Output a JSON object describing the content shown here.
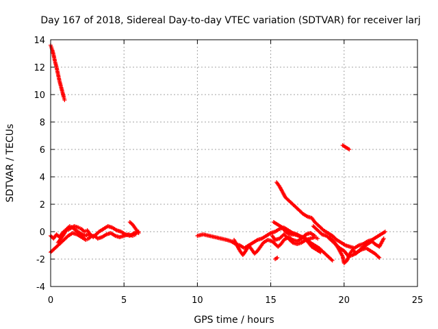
{
  "chart_data": {
    "type": "scatter",
    "title": "Day 167 of 2018, Sidereal Day-to-day VTEC variation (SDTVAR) for receiver larj",
    "xlabel": "GPS time / hours",
    "ylabel": "SDTVAR / TECUs",
    "xlim": [
      0,
      25
    ],
    "ylim": [
      -4,
      14
    ],
    "xticks": [
      0,
      5,
      10,
      15,
      20,
      25
    ],
    "yticks": [
      -4,
      -2,
      0,
      2,
      4,
      6,
      8,
      10,
      12,
      14
    ],
    "grid": true,
    "marker": "+",
    "color": "#ff0000",
    "series": [
      {
        "name": "SDTVAR",
        "segments": [
          [
            [
              0.0,
              13.6
            ],
            [
              0.1,
              13.3
            ],
            [
              0.2,
              12.9
            ],
            [
              0.3,
              12.4
            ],
            [
              0.4,
              12.0
            ],
            [
              0.5,
              11.5
            ],
            [
              0.6,
              11.0
            ],
            [
              0.7,
              10.6
            ],
            [
              0.8,
              10.2
            ],
            [
              0.9,
              9.8
            ],
            [
              0.95,
              9.6
            ]
          ],
          [
            [
              0.0,
              -0.3
            ],
            [
              0.2,
              -0.5
            ],
            [
              0.4,
              -0.2
            ],
            [
              0.6,
              -0.4
            ],
            [
              0.8,
              -0.1
            ],
            [
              1.0,
              0.1
            ],
            [
              1.3,
              0.2
            ],
            [
              1.6,
              0.4
            ],
            [
              1.9,
              0.3
            ],
            [
              2.1,
              0.2
            ],
            [
              2.3,
              0.0
            ],
            [
              2.5,
              0.1
            ],
            [
              2.7,
              -0.2
            ],
            [
              2.9,
              -0.4
            ],
            [
              3.1,
              -0.2
            ],
            [
              3.3,
              0.0
            ],
            [
              3.6,
              0.2
            ],
            [
              3.9,
              0.4
            ],
            [
              4.2,
              0.3
            ],
            [
              4.5,
              0.1
            ],
            [
              4.8,
              0.0
            ],
            [
              5.1,
              -0.2
            ],
            [
              5.4,
              -0.3
            ],
            [
              5.7,
              -0.1
            ],
            [
              6.0,
              0.0
            ]
          ],
          [
            [
              0.0,
              -1.5
            ],
            [
              0.3,
              -1.2
            ],
            [
              0.6,
              -0.9
            ],
            [
              0.9,
              -0.6
            ],
            [
              1.2,
              -0.3
            ],
            [
              1.5,
              -0.1
            ],
            [
              1.8,
              -0.2
            ],
            [
              2.1,
              -0.4
            ],
            [
              2.4,
              -0.6
            ],
            [
              2.6,
              -0.5
            ],
            [
              2.8,
              -0.3
            ],
            [
              3.0,
              -0.3
            ],
            [
              3.2,
              -0.5
            ],
            [
              3.5,
              -0.4
            ],
            [
              3.8,
              -0.2
            ],
            [
              4.1,
              -0.1
            ],
            [
              4.4,
              -0.3
            ],
            [
              4.7,
              -0.4
            ],
            [
              5.0,
              -0.3
            ],
            [
              5.3,
              -0.2
            ],
            [
              5.6,
              -0.3
            ],
            [
              5.8,
              -0.2
            ]
          ],
          [
            [
              0.5,
              -0.8
            ],
            [
              0.7,
              -0.5
            ],
            [
              0.9,
              -0.2
            ],
            [
              1.1,
              0.2
            ],
            [
              1.3,
              0.4
            ],
            [
              1.5,
              0.3
            ],
            [
              1.7,
              0.1
            ],
            [
              2.0,
              -0.1
            ],
            [
              2.3,
              -0.3
            ],
            [
              2.6,
              -0.2
            ]
          ],
          [
            [
              5.4,
              0.7
            ],
            [
              5.6,
              0.5
            ],
            [
              5.8,
              0.2
            ],
            [
              6.0,
              -0.1
            ]
          ],
          [
            [
              10.0,
              -0.3
            ],
            [
              10.4,
              -0.2
            ],
            [
              10.8,
              -0.3
            ],
            [
              11.2,
              -0.4
            ],
            [
              11.6,
              -0.5
            ],
            [
              12.0,
              -0.6
            ],
            [
              12.3,
              -0.7
            ],
            [
              12.6,
              -0.9
            ],
            [
              12.9,
              -1.0
            ],
            [
              13.2,
              -1.2
            ],
            [
              13.5,
              -1.0
            ],
            [
              13.8,
              -0.8
            ],
            [
              14.1,
              -0.6
            ],
            [
              14.4,
              -0.5
            ],
            [
              14.7,
              -0.3
            ],
            [
              15.0,
              -0.1
            ],
            [
              15.3,
              0.0
            ],
            [
              15.6,
              0.2
            ],
            [
              15.9,
              0.3
            ],
            [
              16.2,
              0.1
            ],
            [
              16.5,
              -0.1
            ],
            [
              16.8,
              -0.2
            ],
            [
              17.1,
              -0.4
            ],
            [
              17.4,
              -0.5
            ],
            [
              17.7,
              -0.8
            ],
            [
              18.0,
              -1.0
            ],
            [
              18.3,
              -1.2
            ],
            [
              18.6,
              -1.5
            ],
            [
              18.9,
              -1.8
            ],
            [
              19.2,
              -2.1
            ]
          ],
          [
            [
              12.5,
              -0.6
            ],
            [
              12.7,
              -1.0
            ],
            [
              12.9,
              -1.4
            ],
            [
              13.1,
              -1.7
            ],
            [
              13.3,
              -1.4
            ],
            [
              13.5,
              -1.0
            ],
            [
              13.7,
              -1.3
            ],
            [
              13.9,
              -1.6
            ],
            [
              14.1,
              -1.4
            ],
            [
              14.3,
              -1.1
            ],
            [
              14.5,
              -0.8
            ],
            [
              14.8,
              -0.6
            ],
            [
              15.1,
              -0.7
            ],
            [
              15.3,
              -0.9
            ],
            [
              15.5,
              -1.1
            ],
            [
              15.7,
              -0.9
            ],
            [
              15.9,
              -0.6
            ],
            [
              16.2,
              -0.4
            ],
            [
              16.5,
              -0.6
            ],
            [
              16.8,
              -0.7
            ],
            [
              17.1,
              -0.5
            ],
            [
              17.4,
              -0.2
            ],
            [
              17.7,
              -0.1
            ],
            [
              18.0,
              -0.3
            ]
          ],
          [
            [
              15.1,
              -0.3
            ],
            [
              15.3,
              -0.6
            ],
            [
              15.6,
              -0.5
            ],
            [
              15.9,
              -0.2
            ],
            [
              16.2,
              -0.5
            ],
            [
              16.5,
              -0.8
            ],
            [
              16.8,
              -0.9
            ],
            [
              17.1,
              -0.8
            ],
            [
              17.4,
              -0.6
            ],
            [
              17.7,
              -0.5
            ],
            [
              18.0,
              -0.4
            ],
            [
              18.2,
              -0.5
            ]
          ],
          [
            [
              15.2,
              0.7
            ],
            [
              15.5,
              0.5
            ],
            [
              15.8,
              0.3
            ],
            [
              16.0,
              0.0
            ],
            [
              16.3,
              -0.2
            ],
            [
              16.6,
              -0.2
            ],
            [
              16.9,
              -0.3
            ],
            [
              17.2,
              -0.4
            ],
            [
              17.5,
              -0.7
            ],
            [
              17.8,
              -1.1
            ],
            [
              18.1,
              -1.3
            ],
            [
              18.4,
              -1.5
            ]
          ],
          [
            [
              15.3,
              -2.0
            ],
            [
              15.45,
              -1.9
            ]
          ],
          [
            [
              15.4,
              3.6
            ],
            [
              15.6,
              3.3
            ],
            [
              15.8,
              2.9
            ],
            [
              16.0,
              2.5
            ],
            [
              16.3,
              2.2
            ],
            [
              16.6,
              1.9
            ],
            [
              16.9,
              1.6
            ],
            [
              17.2,
              1.3
            ],
            [
              17.5,
              1.1
            ],
            [
              17.8,
              1.0
            ],
            [
              18.0,
              0.7
            ],
            [
              18.3,
              0.4
            ],
            [
              18.6,
              0.1
            ],
            [
              18.9,
              -0.1
            ],
            [
              19.2,
              -0.3
            ],
            [
              19.5,
              -0.6
            ],
            [
              19.8,
              -0.8
            ],
            [
              20.1,
              -1.0
            ],
            [
              20.4,
              -1.1
            ],
            [
              20.7,
              -1.2
            ],
            [
              21.0,
              -1.0
            ],
            [
              21.3,
              -0.9
            ],
            [
              21.6,
              -0.7
            ],
            [
              21.9,
              -0.6
            ],
            [
              22.2,
              -0.4
            ],
            [
              22.5,
              -0.2
            ],
            [
              22.8,
              0.0
            ]
          ],
          [
            [
              19.0,
              -0.4
            ],
            [
              19.3,
              -0.7
            ],
            [
              19.6,
              -1.2
            ],
            [
              19.9,
              -1.8
            ],
            [
              20.0,
              -2.3
            ],
            [
              20.2,
              -2.1
            ],
            [
              20.4,
              -1.6
            ],
            [
              20.6,
              -1.3
            ],
            [
              20.8,
              -1.6
            ],
            [
              21.0,
              -1.4
            ],
            [
              21.3,
              -1.1
            ],
            [
              21.6,
              -0.9
            ],
            [
              21.9,
              -0.7
            ],
            [
              22.1,
              -0.9
            ],
            [
              22.4,
              -1.1
            ],
            [
              22.7,
              -0.5
            ]
          ],
          [
            [
              17.9,
              0.4
            ],
            [
              18.2,
              0.1
            ],
            [
              18.5,
              -0.2
            ],
            [
              18.8,
              -0.3
            ],
            [
              19.1,
              -0.6
            ],
            [
              19.4,
              -0.9
            ],
            [
              19.7,
              -1.2
            ],
            [
              20.0,
              -1.4
            ],
            [
              20.3,
              -1.8
            ],
            [
              20.6,
              -1.7
            ],
            [
              20.9,
              -1.5
            ],
            [
              21.2,
              -1.3
            ],
            [
              21.5,
              -1.2
            ],
            [
              21.8,
              -1.4
            ],
            [
              22.1,
              -1.6
            ],
            [
              22.4,
              -1.9
            ]
          ],
          [
            [
              19.9,
              6.3
            ],
            [
              20.05,
              6.2
            ],
            [
              20.2,
              6.1
            ],
            [
              20.35,
              6.0
            ]
          ]
        ]
      }
    ]
  }
}
